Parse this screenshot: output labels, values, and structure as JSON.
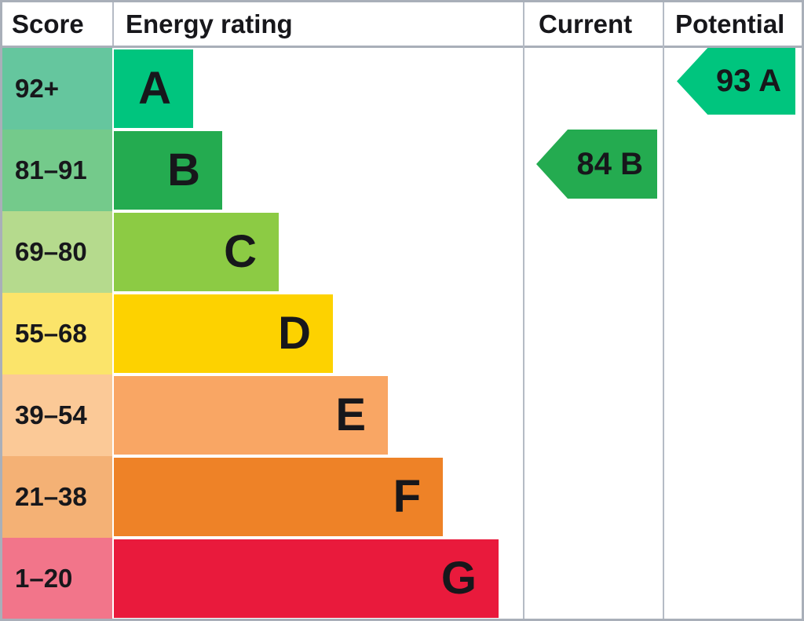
{
  "header": {
    "score": "Score",
    "energy_rating": "Energy rating",
    "current": "Current",
    "potential": "Potential"
  },
  "rows": [
    {
      "score": "92+",
      "grade": "A",
      "band_color": "#00c57e",
      "score_color": "#65c69e"
    },
    {
      "score": "81–91",
      "grade": "B",
      "band_color": "#24ab50",
      "score_color": "#74ca8b"
    },
    {
      "score": "69–80",
      "grade": "C",
      "band_color": "#8ccb44",
      "score_color": "#b5da8d"
    },
    {
      "score": "55–68",
      "grade": "D",
      "band_color": "#fdd200",
      "score_color": "#fbe46a"
    },
    {
      "score": "39–54",
      "grade": "E",
      "band_color": "#f9a664",
      "score_color": "#fbc997"
    },
    {
      "score": "21–38",
      "grade": "F",
      "band_color": "#ee8227",
      "score_color": "#f4b175"
    },
    {
      "score": "1–20",
      "grade": "G",
      "band_color": "#e91a3c",
      "score_color": "#f2758a"
    }
  ],
  "current": {
    "label": "84 B",
    "value": 84,
    "grade": "B",
    "color": "#24ab50"
  },
  "potential": {
    "label": "93 A",
    "value": 93,
    "grade": "A",
    "color": "#00c57e"
  },
  "chart_data": {
    "type": "bar",
    "title": "EPC energy rating chart",
    "columns": [
      "Score",
      "Energy rating",
      "Current",
      "Potential"
    ],
    "categories": [
      "A",
      "B",
      "C",
      "D",
      "E",
      "F",
      "G"
    ],
    "bands": [
      {
        "grade": "A",
        "score_range": "92+",
        "color": "#00c57e"
      },
      {
        "grade": "B",
        "score_range": "81–91",
        "color": "#24ab50"
      },
      {
        "grade": "C",
        "score_range": "69–80",
        "color": "#8ccb44"
      },
      {
        "grade": "D",
        "score_range": "55–68",
        "color": "#fdd200"
      },
      {
        "grade": "E",
        "score_range": "39–54",
        "color": "#f9a664"
      },
      {
        "grade": "F",
        "score_range": "21–38",
        "color": "#ee8227"
      },
      {
        "grade": "G",
        "score_range": "1–20",
        "color": "#e91a3c"
      }
    ],
    "markers": [
      {
        "name": "Current",
        "value": 84,
        "grade": "B",
        "row": "B",
        "color": "#24ab50"
      },
      {
        "name": "Potential",
        "value": 93,
        "grade": "A",
        "row": "A",
        "color": "#00c57e"
      }
    ],
    "layout": {
      "bar_widths_increase_with_worse_rating": true,
      "grid": "off",
      "legend": "none"
    }
  }
}
